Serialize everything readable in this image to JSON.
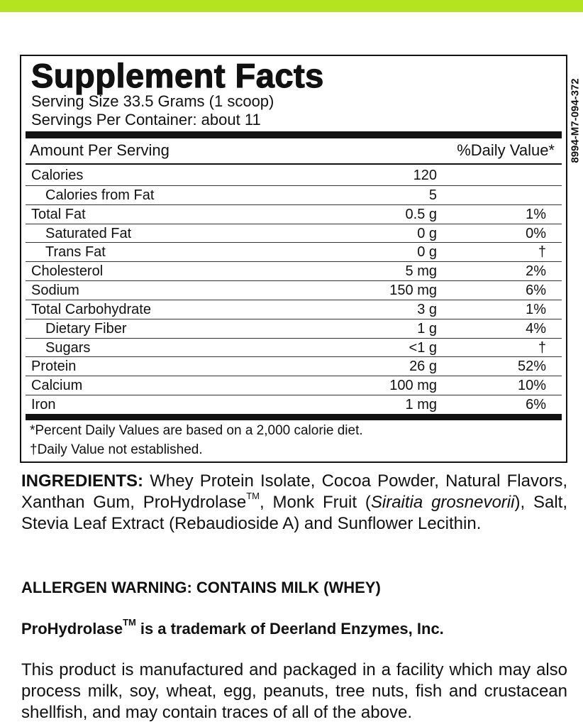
{
  "label": {
    "title": "Supplement Facts",
    "serving_size": "Serving Size 33.5 Grams (1 scoop)",
    "servings_per_container": "Servings Per Container: about 11",
    "amount_header": "Amount Per Serving",
    "dv_header": "%Daily Value*",
    "rows": [
      {
        "name": "Calories",
        "amount": "120",
        "dv": "",
        "indent": false
      },
      {
        "name": "Calories from Fat",
        "amount": "5",
        "dv": "",
        "indent": true
      },
      {
        "name": "Total Fat",
        "amount": "0.5 g",
        "dv": "1%",
        "indent": false
      },
      {
        "name": "Saturated Fat",
        "amount": "0 g",
        "dv": "0%",
        "indent": true
      },
      {
        "name": "Trans Fat",
        "amount": "0 g",
        "dv": "†",
        "indent": true
      },
      {
        "name": "Cholesterol",
        "amount": "5 mg",
        "dv": "2%",
        "indent": false
      },
      {
        "name": "Sodium",
        "amount": "150 mg",
        "dv": "6%",
        "indent": false
      },
      {
        "name": "Total Carbohydrate",
        "amount": "3 g",
        "dv": "1%",
        "indent": false
      },
      {
        "name": "Dietary Fiber",
        "amount": "1 g",
        "dv": "4%",
        "indent": true
      },
      {
        "name": "Sugars",
        "amount": "<1 g",
        "dv": "†",
        "indent": true
      },
      {
        "name": "Protein",
        "amount": "26 g",
        "dv": "52%",
        "indent": false
      },
      {
        "name": "Calcium",
        "amount": "100 mg",
        "dv": "10%",
        "indent": false
      },
      {
        "name": "Iron",
        "amount": "1 mg",
        "dv": "6%",
        "indent": false
      }
    ],
    "footnote_1": "*Percent Daily Values are based on a 2,000 calorie diet.",
    "footnote_2": "†Daily Value not established.",
    "code": "8994-M7-094-372"
  },
  "ingredients": {
    "label": "INGREDIENTS:",
    "parts": [
      "Whey Protein Isolate, Cocoa Powder, Natural Flavors, Xanthan Gum, ProHydrolase",
      "TM",
      ", Monk Fruit (",
      "Siraitia grosnevorii",
      "), Salt, Stevia Leaf Extract (Rebaudioside A) and Sunflower Lecithin."
    ]
  },
  "allergen": "ALLERGEN WARNING: CONTAINS MILK (WHEY)",
  "trademark": {
    "name": "ProHydrolase",
    "tm": "TM",
    "text": "is a trademark of Deerland Enzymes, Inc."
  },
  "facility": "This product is manufactured and packaged in a facility which may also process milk, soy, wheat, egg, peanuts, tree nuts, fish and crustacean shellfish, and may contain traces of all of the above."
}
